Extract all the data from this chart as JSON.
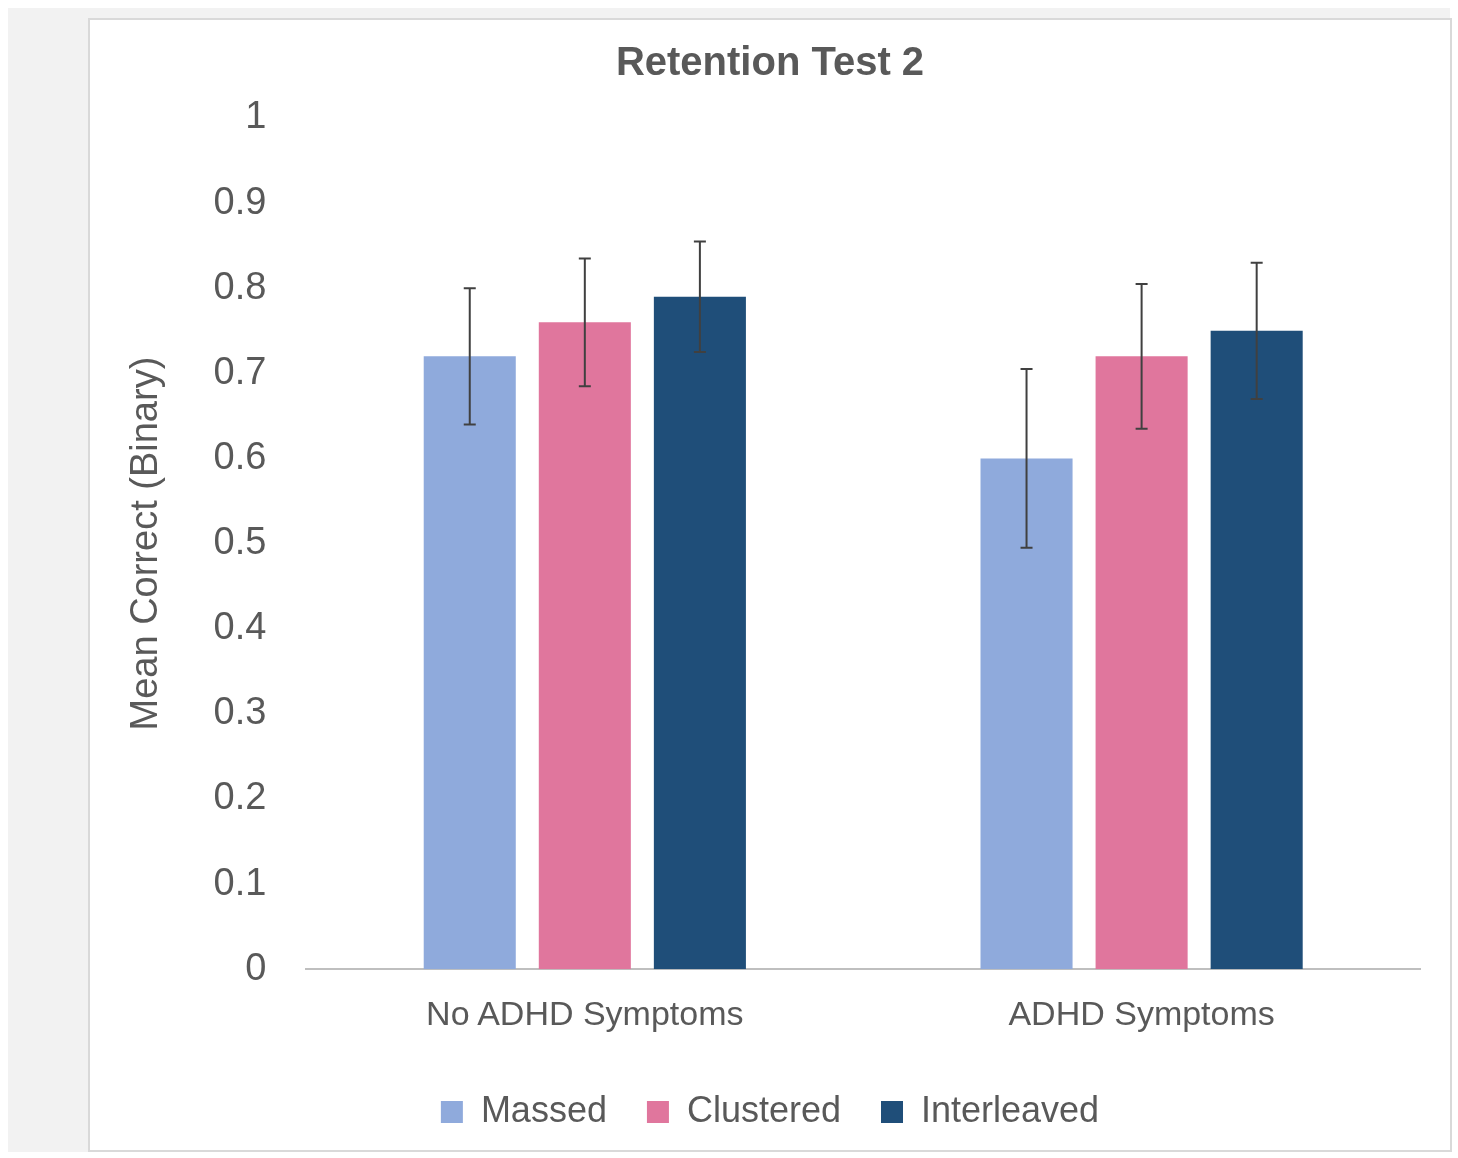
{
  "chart_data": {
    "type": "bar",
    "title": "Retention Test 2",
    "ylabel": "Mean Correct (Binary)",
    "categories": [
      "No ADHD Symptoms",
      "ADHD Symptoms"
    ],
    "series": [
      {
        "name": "Massed",
        "color": "#8faadc",
        "values": [
          0.72,
          0.6
        ],
        "errors": [
          0.08,
          0.105
        ]
      },
      {
        "name": "Clustered",
        "color": "#e0769d",
        "values": [
          0.76,
          0.72
        ],
        "errors": [
          0.075,
          0.085
        ]
      },
      {
        "name": "Interleaved",
        "color": "#1f4e79",
        "values": [
          0.79,
          0.75
        ],
        "errors": [
          0.065,
          0.08
        ]
      }
    ],
    "ylim": [
      0,
      1
    ],
    "yticks": [
      0,
      0.1,
      0.2,
      0.3,
      0.4,
      0.5,
      0.6,
      0.7,
      0.8,
      0.9,
      1
    ],
    "grid": false,
    "legend": "bottom"
  }
}
